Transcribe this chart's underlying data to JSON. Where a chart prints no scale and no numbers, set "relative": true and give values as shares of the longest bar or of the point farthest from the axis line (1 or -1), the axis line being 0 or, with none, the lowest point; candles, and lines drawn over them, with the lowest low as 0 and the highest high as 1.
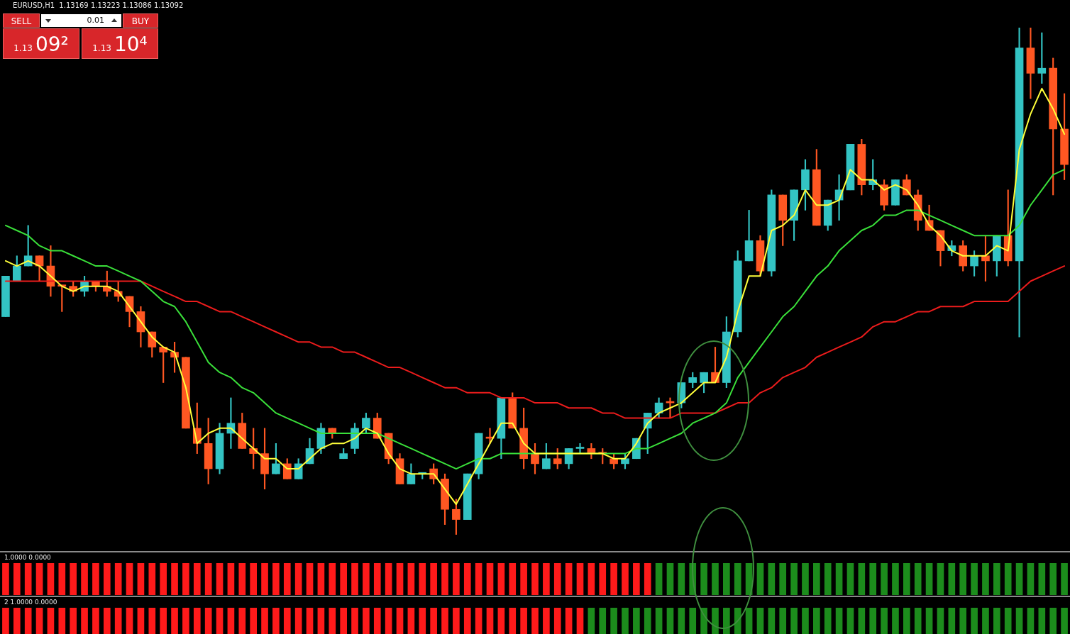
{
  "chart_data": [
    {
      "type": "candlestick",
      "title": "EURUSD,H1  1.13169 1.13223 1.13086 1.13092",
      "relative": true,
      "legend": false,
      "grid": false,
      "tick_labels": false,
      "annotations": [
        "SELL",
        "0.01",
        "BUY",
        "1.13",
        "09²",
        "1.13",
        "10⁴"
      ],
      "categories": [
        null,
        null,
        null,
        null,
        null,
        null,
        null,
        null,
        null,
        null,
        null,
        null,
        null,
        null,
        null,
        null,
        null,
        null,
        null,
        null,
        null,
        null,
        null,
        null,
        null,
        null,
        null,
        null,
        null,
        null,
        null,
        null,
        null,
        null,
        null,
        null,
        null,
        null,
        null,
        null,
        null,
        null,
        null,
        null,
        null,
        null,
        null,
        null,
        null,
        null,
        null,
        null,
        null,
        null,
        null,
        null,
        null,
        null,
        null,
        null,
        null,
        null,
        null,
        null,
        null,
        null,
        null,
        null,
        null,
        null,
        null,
        null,
        null,
        null,
        null,
        null,
        null,
        null,
        null,
        null,
        null,
        null,
        null,
        null,
        null,
        null,
        null,
        null,
        null,
        null,
        null,
        null,
        null,
        null,
        null
      ],
      "ohlc": [
        [
          0.43,
          0.51,
          0.43,
          0.51
        ],
        [
          0.5,
          0.55,
          0.5,
          0.53
        ],
        [
          0.53,
          0.61,
          0.53,
          0.55
        ],
        [
          0.55,
          0.55,
          0.5,
          0.53
        ],
        [
          0.53,
          0.57,
          0.47,
          0.49
        ],
        [
          0.49,
          0.49,
          0.44,
          0.49
        ],
        [
          0.49,
          0.5,
          0.47,
          0.48
        ],
        [
          0.48,
          0.51,
          0.47,
          0.5
        ],
        [
          0.5,
          0.5,
          0.48,
          0.49
        ],
        [
          0.49,
          0.52,
          0.47,
          0.48
        ],
        [
          0.48,
          0.5,
          0.46,
          0.47
        ],
        [
          0.47,
          0.47,
          0.41,
          0.44
        ],
        [
          0.44,
          0.45,
          0.37,
          0.4
        ],
        [
          0.4,
          0.4,
          0.35,
          0.37
        ],
        [
          0.37,
          0.37,
          0.3,
          0.36
        ],
        [
          0.36,
          0.38,
          0.32,
          0.35
        ],
        [
          0.35,
          0.35,
          0.21,
          0.21
        ],
        [
          0.21,
          0.26,
          0.16,
          0.18
        ],
        [
          0.18,
          0.23,
          0.1,
          0.13
        ],
        [
          0.13,
          0.22,
          0.12,
          0.2
        ],
        [
          0.2,
          0.27,
          0.17,
          0.22
        ],
        [
          0.22,
          0.24,
          0.17,
          0.17
        ],
        [
          0.17,
          0.21,
          0.13,
          0.16
        ],
        [
          0.16,
          0.21,
          0.09,
          0.12
        ],
        [
          0.12,
          0.18,
          0.12,
          0.14
        ],
        [
          0.14,
          0.15,
          0.11,
          0.11
        ],
        [
          0.11,
          0.15,
          0.11,
          0.14
        ],
        [
          0.14,
          0.19,
          0.14,
          0.17
        ],
        [
          0.17,
          0.22,
          0.16,
          0.21
        ],
        [
          0.21,
          0.21,
          0.19,
          0.2
        ],
        [
          0.15,
          0.17,
          0.15,
          0.16
        ],
        [
          0.17,
          0.22,
          0.16,
          0.21
        ],
        [
          0.21,
          0.24,
          0.2,
          0.23
        ],
        [
          0.23,
          0.24,
          0.19,
          0.19
        ],
        [
          0.2,
          0.2,
          0.14,
          0.15
        ],
        [
          0.15,
          0.16,
          0.1,
          0.1
        ],
        [
          0.1,
          0.14,
          0.1,
          0.12
        ],
        [
          0.12,
          0.12,
          0.11,
          0.12
        ],
        [
          0.13,
          0.14,
          0.1,
          0.11
        ],
        [
          0.11,
          0.12,
          0.02,
          0.05
        ],
        [
          0.05,
          0.07,
          0,
          0.03
        ],
        [
          0.03,
          0.12,
          0.03,
          0.12
        ],
        [
          0.12,
          0.2,
          0.11,
          0.2
        ],
        [
          0.19,
          0.21,
          0.18,
          0.19
        ],
        [
          0.19,
          0.27,
          0.15,
          0.27
        ],
        [
          0.27,
          0.28,
          0.21,
          0.21
        ],
        [
          0.21,
          0.25,
          0.13,
          0.15
        ],
        [
          0.16,
          0.18,
          0.12,
          0.14
        ],
        [
          0.13,
          0.18,
          0.13,
          0.15
        ],
        [
          0.15,
          0.17,
          0.13,
          0.14
        ],
        [
          0.14,
          0.17,
          0.13,
          0.17
        ],
        [
          0.17,
          0.18,
          0.16,
          0.17
        ],
        [
          0.17,
          0.18,
          0.15,
          0.16
        ],
        [
          0.16,
          0.17,
          0.14,
          0.16
        ],
        [
          0.15,
          0.16,
          0.13,
          0.14
        ],
        [
          0.14,
          0.16,
          0.13,
          0.15
        ],
        [
          0.15,
          0.19,
          0.15,
          0.19
        ],
        [
          0.21,
          0.24,
          0.16,
          0.24
        ],
        [
          0.24,
          0.27,
          0.23,
          0.26
        ],
        [
          0.26,
          0.27,
          0.23,
          0.26
        ],
        [
          0.26,
          0.3,
          0.25,
          0.3
        ],
        [
          0.3,
          0.32,
          0.29,
          0.31
        ],
        [
          0.3,
          0.32,
          0.28,
          0.32
        ],
        [
          0.32,
          0.37,
          0.3,
          0.3
        ],
        [
          0.3,
          0.43,
          0.29,
          0.4
        ],
        [
          0.4,
          0.56,
          0.39,
          0.54
        ],
        [
          0.54,
          0.64,
          0.54,
          0.58
        ],
        [
          0.58,
          0.59,
          0.51,
          0.52
        ],
        [
          0.52,
          0.68,
          0.51,
          0.67
        ],
        [
          0.67,
          0.67,
          0.57,
          0.62
        ],
        [
          0.62,
          0.68,
          0.58,
          0.68
        ],
        [
          0.68,
          0.74,
          0.64,
          0.72
        ],
        [
          0.72,
          0.76,
          0.61,
          0.61
        ],
        [
          0.61,
          0.66,
          0.6,
          0.66
        ],
        [
          0.66,
          0.71,
          0.62,
          0.68
        ],
        [
          0.68,
          0.77,
          0.68,
          0.77
        ],
        [
          0.77,
          0.78,
          0.67,
          0.69
        ],
        [
          0.69,
          0.74,
          0.68,
          0.7
        ],
        [
          0.69,
          0.7,
          0.64,
          0.65
        ],
        [
          0.65,
          0.7,
          0.65,
          0.7
        ],
        [
          0.7,
          0.71,
          0.67,
          0.67
        ],
        [
          0.67,
          0.68,
          0.6,
          0.62
        ],
        [
          0.62,
          0.65,
          0.6,
          0.6
        ],
        [
          0.6,
          0.6,
          0.53,
          0.56
        ],
        [
          0.56,
          0.58,
          0.55,
          0.57
        ],
        [
          0.57,
          0.58,
          0.52,
          0.53
        ],
        [
          0.53,
          0.56,
          0.51,
          0.55
        ],
        [
          0.55,
          0.59,
          0.5,
          0.54
        ],
        [
          0.54,
          0.59,
          0.51,
          0.59
        ],
        [
          0.59,
          0.68,
          0.53,
          0.54
        ],
        [
          0.54,
          1,
          0.39,
          0.96
        ],
        [
          0.96,
          1,
          0.86,
          0.91
        ],
        [
          0.91,
          0.99,
          0.89,
          0.92
        ],
        [
          0.92,
          0.94,
          0.67,
          0.8
        ],
        [
          0.8,
          0.87,
          0.7,
          0.73
        ]
      ],
      "colors": [
        "#33c3c3",
        "#33c3c3",
        "#33c3c3",
        "#ff5722",
        "#ff5722",
        "#ff5722",
        "#ff5722",
        "#33c3c3",
        "#ff5722",
        "#ff5722",
        "#ff5722",
        "#ff5722",
        "#ff5722",
        "#ff5722",
        "#ff5722",
        "#ff5722",
        "#ff5722",
        "#ff5722",
        "#ff5722",
        "#33c3c3",
        "#33c3c3",
        "#ff5722",
        "#ff5722",
        "#ff5722",
        "#33c3c3",
        "#ff5722",
        "#33c3c3",
        "#33c3c3",
        "#33c3c3",
        "#ff5722",
        "#33c3c3",
        "#33c3c3",
        "#33c3c3",
        "#ff5722",
        "#ff5722",
        "#ff5722",
        "#33c3c3",
        "#33c3c3",
        "#ff5722",
        "#ff5722",
        "#ff5722",
        "#33c3c3",
        "#33c3c3",
        "#ff5722",
        "#33c3c3",
        "#ff5722",
        "#ff5722",
        "#ff5722",
        "#33c3c3",
        "#ff5722",
        "#33c3c3",
        "#33c3c3",
        "#ff5722",
        "#ff5722",
        "#ff5722",
        "#33c3c3",
        "#33c3c3",
        "#33c3c3",
        "#33c3c3",
        "#ff5722",
        "#33c3c3",
        "#33c3c3",
        "#33c3c3",
        "#ff5722",
        "#33c3c3",
        "#33c3c3",
        "#33c3c3",
        "#ff5722",
        "#33c3c3",
        "#ff5722",
        "#33c3c3",
        "#33c3c3",
        "#ff5722",
        "#33c3c3",
        "#33c3c3",
        "#33c3c3",
        "#ff5722",
        "#33c3c3",
        "#ff5722",
        "#33c3c3",
        "#ff5722",
        "#ff5722",
        "#ff5722",
        "#ff5722",
        "#33c3c3",
        "#ff5722",
        "#33c3c3",
        "#ff5722",
        "#33c3c3",
        "#ff5722",
        "#33c3c3",
        "#ff5722",
        "#33c3c3",
        "#ff5722",
        "#ff5722"
      ],
      "series": [
        {
          "type": "line",
          "color": "#ffff3a",
          "values": [
            0.54,
            0.53,
            0.54,
            0.53,
            0.51,
            0.49,
            0.48,
            0.49,
            0.49,
            0.49,
            0.48,
            0.45,
            0.42,
            0.39,
            0.37,
            0.36,
            0.29,
            0.18,
            0.2,
            0.21,
            0.21,
            0.19,
            0.17,
            0.15,
            0.15,
            0.13,
            0.13,
            0.15,
            0.17,
            0.18,
            0.18,
            0.19,
            0.21,
            0.2,
            0.16,
            0.13,
            0.12,
            0.12,
            0.12,
            0.09,
            0.06,
            0.1,
            0.14,
            0.18,
            0.22,
            0.22,
            0.18,
            0.16,
            0.16,
            0.16,
            0.16,
            0.16,
            0.16,
            0.16,
            0.15,
            0.15,
            0.18,
            0.22,
            0.24,
            0.25,
            0.26,
            0.28,
            0.3,
            0.3,
            0.35,
            0.44,
            0.51,
            0.51,
            0.6,
            0.61,
            0.63,
            0.68,
            0.65,
            0.65,
            0.66,
            0.72,
            0.7,
            0.7,
            0.68,
            0.69,
            0.68,
            0.65,
            0.61,
            0.59,
            0.56,
            0.55,
            0.55,
            0.55,
            0.57,
            0.56,
            0.76,
            0.83,
            0.88,
            0.84,
            0.79
          ]
        },
        {
          "type": "line",
          "color": "#3ae03a",
          "values": [
            0.61,
            0.6,
            0.59,
            0.57,
            0.56,
            0.56,
            0.55,
            0.54,
            0.53,
            0.53,
            0.52,
            0.51,
            0.5,
            0.48,
            0.46,
            0.45,
            0.42,
            0.38,
            0.34,
            0.32,
            0.31,
            0.29,
            0.28,
            0.26,
            0.24,
            0.23,
            0.22,
            0.21,
            0.2,
            0.2,
            0.2,
            0.2,
            0.2,
            0.2,
            0.19,
            0.18,
            0.17,
            0.16,
            0.15,
            0.14,
            0.13,
            0.14,
            0.15,
            0.15,
            0.16,
            0.16,
            0.16,
            0.16,
            0.16,
            0.16,
            0.16,
            0.16,
            0.16,
            0.16,
            0.16,
            0.16,
            0.17,
            0.17,
            0.18,
            0.19,
            0.2,
            0.22,
            0.23,
            0.24,
            0.26,
            0.31,
            0.34,
            0.37,
            0.4,
            0.43,
            0.45,
            0.48,
            0.51,
            0.53,
            0.56,
            0.58,
            0.6,
            0.61,
            0.63,
            0.63,
            0.64,
            0.64,
            0.63,
            0.62,
            0.61,
            0.6,
            0.59,
            0.59,
            0.59,
            0.59,
            0.61,
            0.65,
            0.68,
            0.71,
            0.72
          ]
        },
        {
          "type": "line",
          "color": "#ec1c1c",
          "values": [
            0.5,
            0.5,
            0.5,
            0.5,
            0.5,
            0.5,
            0.5,
            0.5,
            0.5,
            0.5,
            0.5,
            0.5,
            0.5,
            0.49,
            0.48,
            0.47,
            0.46,
            0.46,
            0.45,
            0.44,
            0.44,
            0.43,
            0.42,
            0.41,
            0.4,
            0.39,
            0.38,
            0.38,
            0.37,
            0.37,
            0.36,
            0.36,
            0.35,
            0.34,
            0.33,
            0.33,
            0.32,
            0.31,
            0.3,
            0.29,
            0.29,
            0.28,
            0.28,
            0.28,
            0.27,
            0.27,
            0.27,
            0.26,
            0.26,
            0.26,
            0.25,
            0.25,
            0.25,
            0.24,
            0.24,
            0.23,
            0.23,
            0.23,
            0.23,
            0.23,
            0.24,
            0.24,
            0.24,
            0.24,
            0.25,
            0.26,
            0.26,
            0.28,
            0.29,
            0.31,
            0.32,
            0.33,
            0.35,
            0.36,
            0.37,
            0.38,
            0.39,
            0.41,
            0.42,
            0.42,
            0.43,
            0.44,
            0.44,
            0.45,
            0.45,
            0.45,
            0.46,
            0.46,
            0.46,
            0.46,
            0.48,
            0.5,
            0.51,
            0.52,
            0.53
          ]
        }
      ]
    },
    {
      "type": "bar",
      "title": "1.0000 0.0000",
      "relative": true,
      "legend": false,
      "grid": false,
      "tick_labels": false,
      "categories": [
        null,
        null,
        null,
        null,
        null,
        null,
        null,
        null,
        null,
        null,
        null,
        null,
        null,
        null,
        null,
        null,
        null,
        null,
        null,
        null,
        null,
        null,
        null,
        null,
        null,
        null,
        null,
        null,
        null,
        null,
        null,
        null,
        null,
        null,
        null,
        null,
        null,
        null,
        null,
        null,
        null,
        null,
        null,
        null,
        null,
        null,
        null,
        null,
        null,
        null,
        null,
        null,
        null,
        null,
        null,
        null,
        null,
        null,
        null,
        null,
        null,
        null,
        null,
        null,
        null,
        null,
        null,
        null,
        null,
        null,
        null,
        null,
        null,
        null,
        null,
        null,
        null,
        null,
        null,
        null,
        null,
        null,
        null,
        null,
        null,
        null,
        null,
        null,
        null,
        null,
        null,
        null,
        null,
        null,
        null
      ],
      "values": [
        1,
        1,
        1,
        1,
        1,
        1,
        1,
        1,
        1,
        1,
        1,
        1,
        1,
        1,
        1,
        1,
        1,
        1,
        1,
        1,
        1,
        1,
        1,
        1,
        1,
        1,
        1,
        1,
        1,
        1,
        1,
        1,
        1,
        1,
        1,
        1,
        1,
        1,
        1,
        1,
        1,
        1,
        1,
        1,
        1,
        1,
        1,
        1,
        1,
        1,
        1,
        1,
        1,
        1,
        1,
        1,
        1,
        1,
        1,
        1,
        1,
        1,
        1,
        1,
        1,
        1,
        1,
        1,
        1,
        1,
        1,
        1,
        1,
        1,
        1,
        1,
        1,
        1,
        1,
        1,
        1,
        1,
        1,
        1,
        1,
        1,
        1,
        1,
        1,
        1,
        1,
        1,
        1,
        1,
        1
      ],
      "colors": [
        "#ff1a1a",
        "#ff1a1a",
        "#ff1a1a",
        "#ff1a1a",
        "#ff1a1a",
        "#ff1a1a",
        "#ff1a1a",
        "#ff1a1a",
        "#ff1a1a",
        "#ff1a1a",
        "#ff1a1a",
        "#ff1a1a",
        "#ff1a1a",
        "#ff1a1a",
        "#ff1a1a",
        "#ff1a1a",
        "#ff1a1a",
        "#ff1a1a",
        "#ff1a1a",
        "#ff1a1a",
        "#ff1a1a",
        "#ff1a1a",
        "#ff1a1a",
        "#ff1a1a",
        "#ff1a1a",
        "#ff1a1a",
        "#ff1a1a",
        "#ff1a1a",
        "#ff1a1a",
        "#ff1a1a",
        "#ff1a1a",
        "#ff1a1a",
        "#ff1a1a",
        "#ff1a1a",
        "#ff1a1a",
        "#ff1a1a",
        "#ff1a1a",
        "#ff1a1a",
        "#ff1a1a",
        "#ff1a1a",
        "#ff1a1a",
        "#ff1a1a",
        "#ff1a1a",
        "#ff1a1a",
        "#ff1a1a",
        "#ff1a1a",
        "#ff1a1a",
        "#ff1a1a",
        "#ff1a1a",
        "#ff1a1a",
        "#ff1a1a",
        "#ff1a1a",
        "#ff1a1a",
        "#ff1a1a",
        "#ff1a1a",
        "#ff1a1a",
        "#ff1a1a",
        "#ff1a1a",
        "#1c8c1c",
        "#1c8c1c",
        "#1c8c1c",
        "#1c8c1c",
        "#1c8c1c",
        "#1c8c1c",
        "#1c8c1c",
        "#1c8c1c",
        "#1c8c1c",
        "#1c8c1c",
        "#1c8c1c",
        "#1c8c1c",
        "#1c8c1c",
        "#1c8c1c",
        "#1c8c1c",
        "#1c8c1c",
        "#1c8c1c",
        "#1c8c1c",
        "#1c8c1c",
        "#1c8c1c",
        "#1c8c1c",
        "#1c8c1c",
        "#1c8c1c",
        "#1c8c1c",
        "#1c8c1c",
        "#1c8c1c",
        "#1c8c1c",
        "#1c8c1c",
        "#1c8c1c",
        "#1c8c1c",
        "#1c8c1c",
        "#1c8c1c",
        "#1c8c1c",
        "#1c8c1c",
        "#1c8c1c",
        "#1c8c1c",
        "#1c8c1c"
      ]
    },
    {
      "type": "bar",
      "title": "2 1.0000 0.0000",
      "relative": true,
      "legend": false,
      "grid": false,
      "tick_labels": false,
      "categories": [
        null,
        null,
        null,
        null,
        null,
        null,
        null,
        null,
        null,
        null,
        null,
        null,
        null,
        null,
        null,
        null,
        null,
        null,
        null,
        null,
        null,
        null,
        null,
        null,
        null,
        null,
        null,
        null,
        null,
        null,
        null,
        null,
        null,
        null,
        null,
        null,
        null,
        null,
        null,
        null,
        null,
        null,
        null,
        null,
        null,
        null,
        null,
        null,
        null,
        null,
        null,
        null,
        null,
        null,
        null,
        null,
        null,
        null,
        null,
        null,
        null,
        null,
        null,
        null,
        null,
        null,
        null,
        null,
        null,
        null,
        null,
        null,
        null,
        null,
        null,
        null,
        null,
        null,
        null,
        null,
        null,
        null,
        null,
        null,
        null,
        null,
        null,
        null,
        null,
        null,
        null,
        null,
        null,
        null,
        null
      ],
      "values": [
        1,
        1,
        1,
        1,
        1,
        1,
        1,
        1,
        1,
        1,
        1,
        1,
        1,
        1,
        1,
        1,
        1,
        1,
        1,
        1,
        1,
        1,
        1,
        1,
        1,
        1,
        1,
        1,
        1,
        1,
        1,
        1,
        1,
        1,
        1,
        1,
        1,
        1,
        1,
        1,
        1,
        1,
        1,
        1,
        1,
        1,
        1,
        1,
        1,
        1,
        1,
        1,
        1,
        1,
        1,
        1,
        1,
        1,
        1,
        1,
        1,
        1,
        1,
        1,
        1,
        1,
        1,
        1,
        1,
        1,
        1,
        1,
        1,
        1,
        1,
        1,
        1,
        1,
        1,
        1,
        1,
        1,
        1,
        1,
        1,
        1,
        1,
        1,
        1,
        1,
        1,
        1,
        1,
        1,
        1
      ],
      "colors": [
        "#ff1a1a",
        "#ff1a1a",
        "#ff1a1a",
        "#ff1a1a",
        "#ff1a1a",
        "#ff1a1a",
        "#ff1a1a",
        "#ff1a1a",
        "#ff1a1a",
        "#ff1a1a",
        "#ff1a1a",
        "#ff1a1a",
        "#ff1a1a",
        "#ff1a1a",
        "#ff1a1a",
        "#ff1a1a",
        "#ff1a1a",
        "#ff1a1a",
        "#ff1a1a",
        "#ff1a1a",
        "#ff1a1a",
        "#ff1a1a",
        "#ff1a1a",
        "#ff1a1a",
        "#ff1a1a",
        "#ff1a1a",
        "#ff1a1a",
        "#ff1a1a",
        "#ff1a1a",
        "#ff1a1a",
        "#ff1a1a",
        "#ff1a1a",
        "#ff1a1a",
        "#ff1a1a",
        "#ff1a1a",
        "#ff1a1a",
        "#ff1a1a",
        "#ff1a1a",
        "#ff1a1a",
        "#ff1a1a",
        "#ff1a1a",
        "#ff1a1a",
        "#ff1a1a",
        "#ff1a1a",
        "#ff1a1a",
        "#ff1a1a",
        "#ff1a1a",
        "#ff1a1a",
        "#ff1a1a",
        "#ff1a1a",
        "#ff1a1a",
        "#ff1a1a",
        "#1c8c1c",
        "#1c8c1c",
        "#1c8c1c",
        "#1c8c1c",
        "#1c8c1c",
        "#1c8c1c",
        "#1c8c1c",
        "#1c8c1c",
        "#1c8c1c",
        "#1c8c1c",
        "#1c8c1c",
        "#1c8c1c",
        "#1c8c1c",
        "#1c8c1c",
        "#1c8c1c",
        "#1c8c1c",
        "#1c8c1c",
        "#1c8c1c",
        "#1c8c1c",
        "#1c8c1c",
        "#1c8c1c",
        "#1c8c1c",
        "#1c8c1c",
        "#1c8c1c",
        "#1c8c1c",
        "#1c8c1c",
        "#1c8c1c",
        "#1c8c1c",
        "#1c8c1c",
        "#1c8c1c",
        "#1c8c1c",
        "#1c8c1c",
        "#1c8c1c",
        "#1c8c1c",
        "#1c8c1c",
        "#1c8c1c",
        "#1c8c1c",
        "#1c8c1c",
        "#1c8c1c",
        "#1c8c1c",
        "#1c8c1c",
        "#1c8c1c",
        "#1c8c1c"
      ]
    }
  ]
}
